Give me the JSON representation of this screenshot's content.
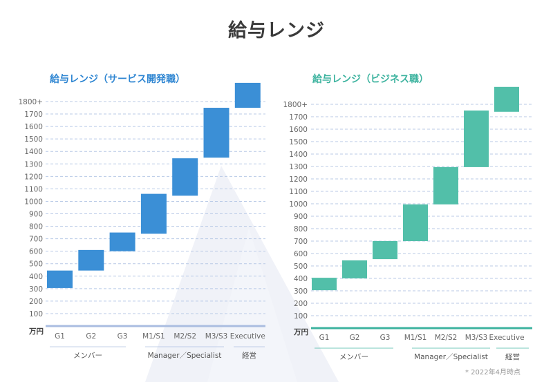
{
  "page_title": "給与レンジ",
  "footnote": "* 2022年4月時点",
  "colors": {
    "service": "#3b8fd6",
    "business": "#52bfa9",
    "service_axis": "#aabde0",
    "business_axis": "#3db39f",
    "grid": "#b8c9e6"
  },
  "chart_data": [
    {
      "type": "bar",
      "title": "給与レンジ（サービス開発職）",
      "ylabel": "万円",
      "ylim": [
        0,
        1800
      ],
      "y_ticks": [
        "100",
        "200",
        "300",
        "400",
        "500",
        "600",
        "700",
        "800",
        "900",
        "1000",
        "1100",
        "1200",
        "1300",
        "1400",
        "1500",
        "1600",
        "1700",
        "1800+"
      ],
      "categories": [
        "G1",
        "G2",
        "G3",
        "M1/S1",
        "M2/S2",
        "M3/S3",
        "Executive"
      ],
      "ranges": [
        [
          305,
          445
        ],
        [
          445,
          610
        ],
        [
          600,
          750
        ],
        [
          740,
          1060
        ],
        [
          1045,
          1345
        ],
        [
          1350,
          1750
        ],
        [
          1750,
          1950
        ]
      ],
      "groups": [
        {
          "label": "メンバー",
          "from": 0,
          "to": 2
        },
        {
          "label": "Manager／Specialist",
          "from": 3,
          "to": 5
        },
        {
          "label": "経営",
          "from": 6,
          "to": 6
        }
      ]
    },
    {
      "type": "bar",
      "title": "給与レンジ（ビジネス職）",
      "ylabel": "万円",
      "ylim": [
        0,
        1800
      ],
      "y_ticks": [
        "100",
        "200",
        "300",
        "400",
        "500",
        "600",
        "700",
        "800",
        "900",
        "1000",
        "1100",
        "1200",
        "1300",
        "1400",
        "1500",
        "1600",
        "1700",
        "1800+"
      ],
      "categories": [
        "G1",
        "G2",
        "G3",
        "M1/S1",
        "M2/S2",
        "M3/S3",
        "Executive"
      ],
      "ranges": [
        [
          305,
          405
        ],
        [
          400,
          545
        ],
        [
          555,
          700
        ],
        [
          700,
          995
        ],
        [
          995,
          1295
        ],
        [
          1295,
          1750
        ],
        [
          1740,
          1940
        ]
      ],
      "groups": [
        {
          "label": "メンバー",
          "from": 0,
          "to": 2
        },
        {
          "label": "Manager／Specialist",
          "from": 3,
          "to": 5
        },
        {
          "label": "経営",
          "from": 6,
          "to": 6
        }
      ]
    }
  ]
}
